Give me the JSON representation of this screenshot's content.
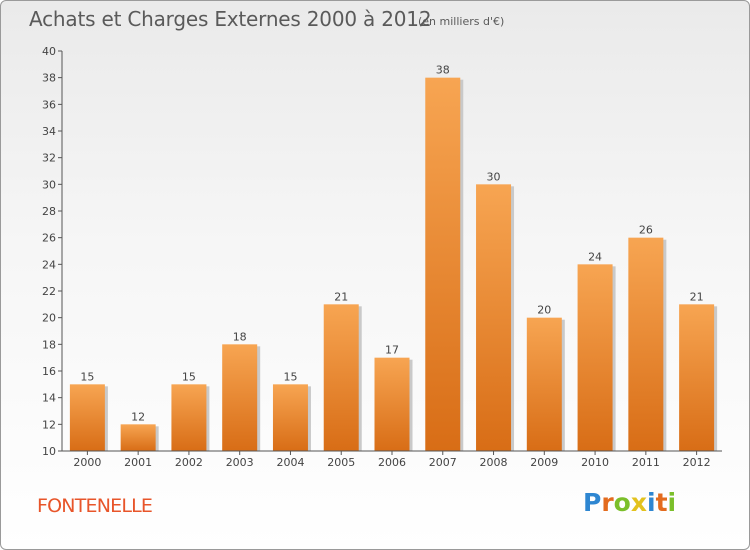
{
  "title": "Achats et Charges Externes 2000 à 2012",
  "unit_note": "(en milliers d'€)",
  "location": "FONTENELLE",
  "brand": {
    "letters": [
      "P",
      "r",
      "o",
      "x",
      "i",
      "t",
      "i"
    ],
    "colors": [
      "#2e86d1",
      "#e36b1e",
      "#7bbf2a",
      "#e3c21e",
      "#2e86d1",
      "#e36b1e",
      "#7bbf2a"
    ]
  },
  "colors": {
    "bar_top": "#f7a552",
    "bar_bottom": "#d86d16",
    "axis": "#555555",
    "grid": "#dddddd",
    "text": "#444444"
  },
  "chart_data": {
    "type": "bar",
    "categories": [
      "2000",
      "2001",
      "2002",
      "2003",
      "2004",
      "2005",
      "2006",
      "2007",
      "2008",
      "2009",
      "2010",
      "2011",
      "2012"
    ],
    "values": [
      15,
      12,
      15,
      18,
      15,
      21,
      17,
      38,
      30,
      20,
      24,
      26,
      21
    ],
    "data_labels": [
      "15",
      "12",
      "15",
      "18",
      "15",
      "21",
      "17",
      "38",
      "30",
      "20",
      "24",
      "26",
      "21"
    ],
    "y_ticks": [
      "10",
      "12",
      "14",
      "16",
      "18",
      "20",
      "22",
      "24",
      "26",
      "28",
      "30",
      "32",
      "34",
      "36",
      "38",
      "40"
    ],
    "ylim": [
      10,
      40
    ],
    "title": "Achats et Charges Externes 2000 à 2012",
    "xlabel": "",
    "ylabel": "",
    "grid": false,
    "legend": "none"
  }
}
